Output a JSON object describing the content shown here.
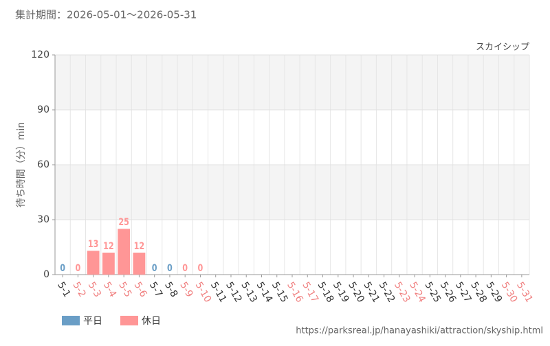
{
  "header": {
    "period": "集計期間：2026-05-01～2026-05-31"
  },
  "chart_data": {
    "type": "bar",
    "subtitle": "スカイシップ",
    "y_label": "待ち時間（分）min",
    "categories": [
      "5-1",
      "5-2",
      "5-3",
      "5-4",
      "5-5",
      "5-6",
      "5-7",
      "5-8",
      "5-9",
      "5-10",
      "5-11",
      "5-12",
      "5-13",
      "5-14",
      "5-15",
      "5-16",
      "5-17",
      "5-18",
      "5-19",
      "5-20",
      "5-21",
      "5-22",
      "5-23",
      "5-24",
      "5-25",
      "5-26",
      "5-27",
      "5-28",
      "5-29",
      "5-30",
      "5-31"
    ],
    "category_colors": [
      "#333333",
      "#f08080",
      "#f08080",
      "#f08080",
      "#f08080",
      "#f08080",
      "#333333",
      "#333333",
      "#f08080",
      "#f08080",
      "#333333",
      "#333333",
      "#333333",
      "#333333",
      "#333333",
      "#f08080",
      "#f08080",
      "#333333",
      "#333333",
      "#333333",
      "#333333",
      "#333333",
      "#f08080",
      "#f08080",
      "#333333",
      "#333333",
      "#333333",
      "#333333",
      "#333333",
      "#f08080",
      "#f08080"
    ],
    "series": [
      {
        "name": "平日",
        "color": "#6a9ec6",
        "values": [
          0,
          null,
          null,
          null,
          null,
          null,
          0,
          0,
          null,
          null,
          null,
          null,
          null,
          null,
          null,
          null,
          null,
          null,
          null,
          null,
          null,
          null,
          null,
          null,
          null,
          null,
          null,
          null,
          null,
          null,
          null
        ]
      },
      {
        "name": "休日",
        "color": "#ff9696",
        "values": [
          null,
          0,
          13,
          12,
          25,
          12,
          null,
          null,
          0,
          0,
          null,
          null,
          null,
          null,
          null,
          null,
          null,
          null,
          null,
          null,
          null,
          null,
          null,
          null,
          null,
          null,
          null,
          null,
          null,
          null,
          null
        ]
      }
    ],
    "ylim": [
      0,
      120
    ],
    "yticks": [
      0,
      30,
      60,
      90,
      120
    ],
    "grid": true,
    "legend": "bottom-left"
  },
  "footer": {
    "url": "https://parksreal.jp/hanayashiki/attraction/skyship.html"
  }
}
